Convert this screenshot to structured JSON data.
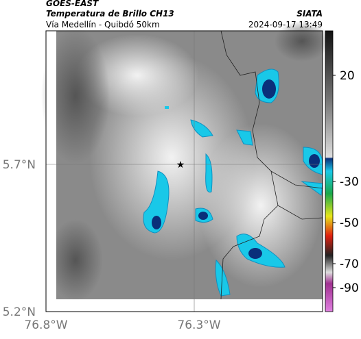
{
  "header": {
    "source": "GOES-EAST",
    "title": "Temperatura de Brillo CH13",
    "subtitle": "Vía Medellín - Quibdó 50km",
    "agency": "SIATA",
    "timestamp": "2024-09-17 13:49"
  },
  "map": {
    "lat_labels": [
      "5.7°N",
      "5.2°N"
    ],
    "lon_labels": [
      "76.8°W",
      "76.3°W"
    ]
  },
  "colorbar": {
    "ticks": [
      20,
      -30,
      -50,
      -70,
      -90
    ]
  }
}
